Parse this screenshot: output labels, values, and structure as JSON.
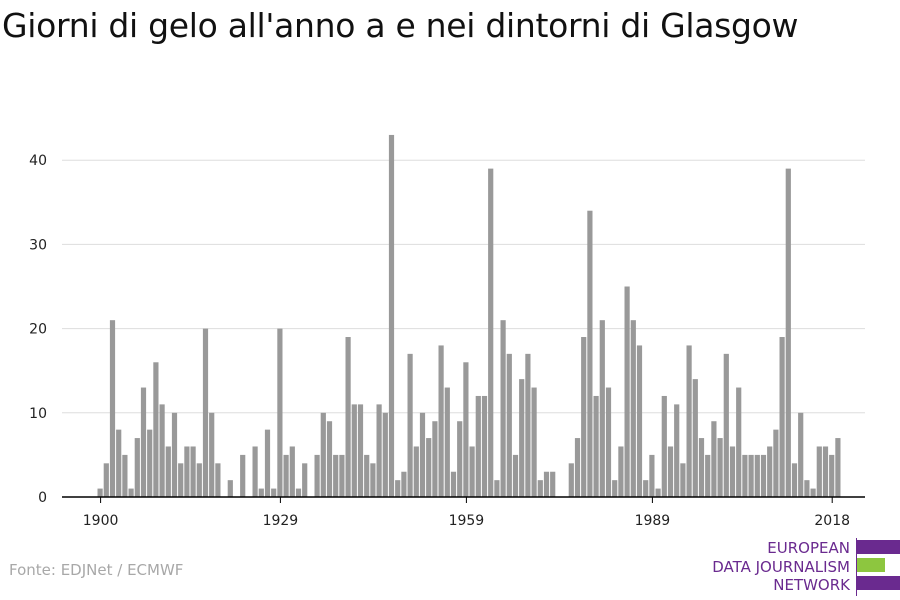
{
  "title": "Giorni di gelo all'anno a e nei dintorni di Glasgow",
  "source": "Fonte: EDJNet / ECMWF",
  "logo": {
    "lines": [
      "EUROPEAN",
      "DATA JOURNALISM",
      "NETWORK"
    ],
    "colors": {
      "purple": "#6a2a8f",
      "green": "#8dc63f"
    }
  },
  "chart_data": {
    "type": "bar",
    "title": "Giorni di gelo all'anno a e nei dintorni di Glasgow",
    "xlabel": "",
    "ylabel": "",
    "x_start": 1900,
    "x_end": 2021,
    "xticks": [
      1900,
      1929,
      1959,
      1989,
      2018
    ],
    "yticks": [
      0,
      10,
      20,
      30,
      40
    ],
    "ylim": [
      0,
      45
    ],
    "grid": true,
    "bar_color": "#999999",
    "values": [
      1,
      4,
      21,
      8,
      5,
      1,
      7,
      13,
      8,
      16,
      11,
      6,
      10,
      4,
      6,
      6,
      4,
      20,
      10,
      4,
      0,
      2,
      0,
      5,
      0,
      6,
      1,
      8,
      1,
      20,
      5,
      6,
      1,
      4,
      0,
      5,
      10,
      9,
      5,
      5,
      19,
      11,
      11,
      5,
      4,
      11,
      10,
      43,
      2,
      3,
      17,
      6,
      10,
      7,
      9,
      18,
      13,
      3,
      9,
      16,
      6,
      12,
      12,
      39,
      2,
      21,
      17,
      5,
      14,
      17,
      13,
      2,
      3,
      3,
      0,
      0,
      4,
      7,
      19,
      34,
      12,
      21,
      13,
      2,
      6,
      25,
      21,
      18,
      2,
      5,
      1,
      12,
      6,
      11,
      4,
      18,
      14,
      7,
      5,
      9,
      7,
      17,
      6,
      13,
      5,
      5,
      5,
      5,
      6,
      8,
      19,
      39,
      4,
      10,
      2,
      1,
      6,
      6,
      5,
      7
    ]
  }
}
